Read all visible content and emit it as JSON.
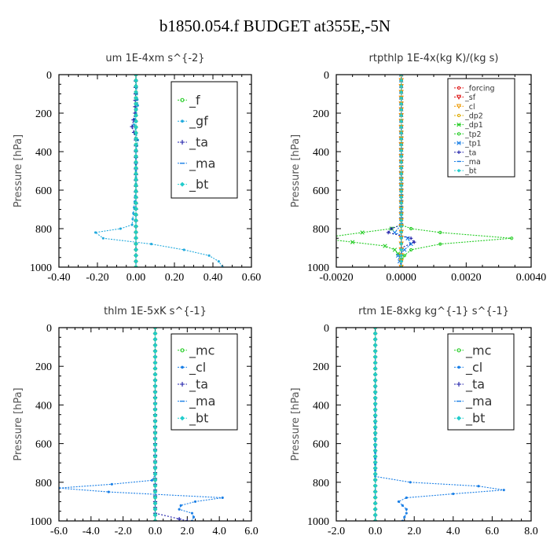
{
  "figure": {
    "title": "b1850.054.f  BUDGET at355E,-5N"
  },
  "colors": {
    "green": "#22cc22",
    "blue": "#1a7fe6",
    "navy": "#1c1ca8",
    "skyblue": "#22aadd",
    "cyan": "#22cccc",
    "red": "#dd1111",
    "orange": "#ee9900",
    "gold": "#ddaa00",
    "black": "#000000"
  },
  "chart_data": [
    {
      "type": "line",
      "title": "um   1E-4xm s^{-2}",
      "ylabel": "Pressure [hPa]",
      "xlim": [
        -0.4,
        0.6
      ],
      "ylim": [
        1000,
        0
      ],
      "xticks": [
        -0.4,
        -0.2,
        0.0,
        0.2,
        0.4,
        0.6
      ],
      "xtick_labels": [
        "-0.40",
        "-0.20",
        "0.00",
        "0.20",
        "0.40",
        "0.60"
      ],
      "yticks": [
        0,
        200,
        400,
        600,
        800,
        1000
      ],
      "ytick_labels": [
        "0",
        "200",
        "400",
        "600",
        "800",
        "1000"
      ],
      "legend_style": "big",
      "series": [
        {
          "name": "_f",
          "color": "green",
          "marker": "circle",
          "p": [
            0,
            1000
          ],
          "x": [
            0.0,
            0.0
          ]
        },
        {
          "name": "_gf",
          "color": "skyblue",
          "marker": "dot",
          "p": [
            0,
            100,
            160,
            200,
            260,
            340,
            400,
            600,
            780,
            800,
            820,
            850,
            880,
            910,
            940,
            970,
            1000
          ],
          "x": [
            0.0,
            0.005,
            0.01,
            0.0,
            -0.01,
            0.01,
            0.0,
            0.0,
            -0.02,
            -0.08,
            -0.21,
            -0.17,
            0.08,
            0.25,
            0.38,
            0.43,
            0.45
          ]
        },
        {
          "name": "_ta",
          "color": "navy",
          "marker": "plus",
          "p": [
            0,
            200,
            270,
            300,
            340,
            400,
            1000
          ],
          "x": [
            0.0,
            -0.005,
            -0.02,
            -0.01,
            0.0,
            0.0,
            0.0
          ]
        },
        {
          "name": "_ma",
          "color": "blue",
          "marker": "dash",
          "p": [
            0,
            1000
          ],
          "x": [
            0.0,
            0.0
          ]
        },
        {
          "name": "_bt",
          "color": "cyan",
          "marker": "diamond",
          "p": [
            0,
            1000
          ],
          "x": [
            0.0,
            0.0
          ]
        }
      ]
    },
    {
      "type": "line",
      "title": "rtpthlp   1E-4x(kg K)/(kg s)",
      "ylabel": "Pressure [hPa]",
      "xlim": [
        -0.002,
        0.004
      ],
      "ylim": [
        1000,
        0
      ],
      "xticks": [
        -0.002,
        0.0,
        0.002,
        0.004
      ],
      "xtick_labels": [
        "-0.0020",
        "0.0000",
        "0.0020",
        "0.0040"
      ],
      "yticks": [
        0,
        200,
        400,
        600,
        800,
        1000
      ],
      "ytick_labels": [
        "0",
        "200",
        "400",
        "600",
        "800",
        "1000"
      ],
      "legend_style": "small",
      "series": [
        {
          "name": "_forcing",
          "color": "red",
          "marker": "circle",
          "p": [
            0,
            1000
          ],
          "x": [
            0.0,
            0.0
          ]
        },
        {
          "name": "_sf",
          "color": "red",
          "marker": "triangle",
          "p": [
            0,
            1000
          ],
          "x": [
            0.0,
            0.0
          ]
        },
        {
          "name": "_cl",
          "color": "orange",
          "marker": "triangle",
          "p": [
            0,
            1000
          ],
          "x": [
            0.0,
            0.0
          ]
        },
        {
          "name": "_dp2",
          "color": "gold",
          "marker": "circle",
          "p": [
            0,
            1000
          ],
          "x": [
            0.0,
            0.0
          ]
        },
        {
          "name": "_dp1",
          "color": "green",
          "marker": "x",
          "p": [
            0,
            780,
            800,
            820,
            850,
            870,
            890,
            910,
            930,
            960,
            1000
          ],
          "x": [
            0.0,
            0.0,
            -0.0003,
            -0.0012,
            -0.0025,
            -0.0015,
            -0.0005,
            -0.0002,
            -0.0001,
            0.0,
            0.0
          ]
        },
        {
          "name": "_tp2",
          "color": "green",
          "marker": "circle",
          "p": [
            0,
            780,
            800,
            820,
            850,
            880,
            910,
            940,
            970,
            1000
          ],
          "x": [
            0.0,
            0.0,
            0.0003,
            0.0012,
            0.0034,
            0.0012,
            0.0003,
            0.0001,
            0.0,
            0.0
          ]
        },
        {
          "name": "_tp1",
          "color": "blue",
          "marker": "x",
          "p": [
            0,
            780,
            820,
            850,
            880,
            910,
            940,
            1000
          ],
          "x": [
            0.0,
            0.0,
            -0.0002,
            0.0002,
            0.0003,
            0.0001,
            -0.0001,
            0.0
          ]
        },
        {
          "name": "_ta",
          "color": "navy",
          "marker": "plus",
          "p": [
            0,
            780,
            800,
            820,
            850,
            870,
            900,
            1000
          ],
          "x": [
            0.0,
            0.0,
            -0.0003,
            -0.0004,
            0.0003,
            0.0004,
            0.0,
            0.0
          ]
        },
        {
          "name": "_ma",
          "color": "blue",
          "marker": "dash",
          "p": [
            0,
            1000
          ],
          "x": [
            0.0,
            0.0
          ]
        },
        {
          "name": "_bt",
          "color": "cyan",
          "marker": "diamond",
          "p": [
            0,
            1000
          ],
          "x": [
            0.0,
            0.0
          ]
        }
      ]
    },
    {
      "type": "line",
      "title": "thlm   1E-5xK s^{-1}",
      "ylabel": "Pressure [hPa]",
      "xlim": [
        -6.0,
        6.0
      ],
      "ylim": [
        1000,
        0
      ],
      "xticks": [
        -6,
        -4,
        -2,
        0,
        2,
        4,
        6
      ],
      "xtick_labels": [
        "-6.0",
        "-4.0",
        "-2.0",
        "0.0",
        "2.0",
        "4.0",
        "6.0"
      ],
      "yticks": [
        0,
        200,
        400,
        600,
        800,
        1000
      ],
      "ytick_labels": [
        "0",
        "200",
        "400",
        "600",
        "800",
        "1000"
      ],
      "legend_style": "big",
      "series": [
        {
          "name": "_mc",
          "color": "green",
          "marker": "circle",
          "p": [
            0,
            1000
          ],
          "x": [
            0.0,
            0.0
          ]
        },
        {
          "name": "_cl",
          "color": "blue",
          "marker": "dot",
          "p": [
            0,
            760,
            790,
            810,
            830,
            850,
            880,
            900,
            920,
            940,
            960,
            980,
            1000
          ],
          "x": [
            0.0,
            0.0,
            -0.2,
            -2.7,
            -6.0,
            -2.9,
            4.2,
            2.5,
            1.6,
            1.5,
            2.3,
            2.4,
            2.3
          ]
        },
        {
          "name": "_ta",
          "color": "navy",
          "marker": "plus",
          "p": [
            0,
            960,
            990,
            1000
          ],
          "x": [
            0.0,
            0.0,
            1.5,
            2.0
          ]
        },
        {
          "name": "_ma",
          "color": "blue",
          "marker": "dash",
          "p": [
            0,
            1000
          ],
          "x": [
            0.0,
            0.0
          ]
        },
        {
          "name": "_bt",
          "color": "cyan",
          "marker": "diamond",
          "p": [
            0,
            1000
          ],
          "x": [
            0.0,
            0.0
          ]
        }
      ]
    },
    {
      "type": "line",
      "title": "rtm   1E-8xkg kg^{-1} s^{-1}",
      "ylabel": "Pressure [hPa]",
      "xlim": [
        -2.0,
        8.0
      ],
      "ylim": [
        1000,
        0
      ],
      "xticks": [
        -2,
        0,
        2,
        4,
        6,
        8
      ],
      "xtick_labels": [
        "-2.0",
        "0.0",
        "2.0",
        "4.0",
        "6.0",
        "8.0"
      ],
      "yticks": [
        0,
        200,
        400,
        600,
        800,
        1000
      ],
      "ytick_labels": [
        "0",
        "200",
        "400",
        "600",
        "800",
        "1000"
      ],
      "legend_style": "big",
      "series": [
        {
          "name": "_mc",
          "color": "green",
          "marker": "circle",
          "p": [
            0,
            1000
          ],
          "x": [
            0.0,
            0.0
          ]
        },
        {
          "name": "_cl",
          "color": "blue",
          "marker": "dot",
          "p": [
            0,
            770,
            800,
            820,
            840,
            860,
            880,
            900,
            920,
            940,
            960,
            980,
            1000
          ],
          "x": [
            0.0,
            0.0,
            1.8,
            5.3,
            6.6,
            4.0,
            1.6,
            1.2,
            1.4,
            1.6,
            1.6,
            1.5,
            1.4
          ]
        },
        {
          "name": "_ta",
          "color": "navy",
          "marker": "plus",
          "p": [
            0,
            1000
          ],
          "x": [
            0.0,
            0.0
          ]
        },
        {
          "name": "_ma",
          "color": "blue",
          "marker": "dash",
          "p": [
            0,
            1000
          ],
          "x": [
            0.0,
            0.0
          ]
        },
        {
          "name": "_bt",
          "color": "cyan",
          "marker": "diamond",
          "p": [
            0,
            1000
          ],
          "x": [
            0.0,
            0.0
          ]
        }
      ]
    }
  ]
}
